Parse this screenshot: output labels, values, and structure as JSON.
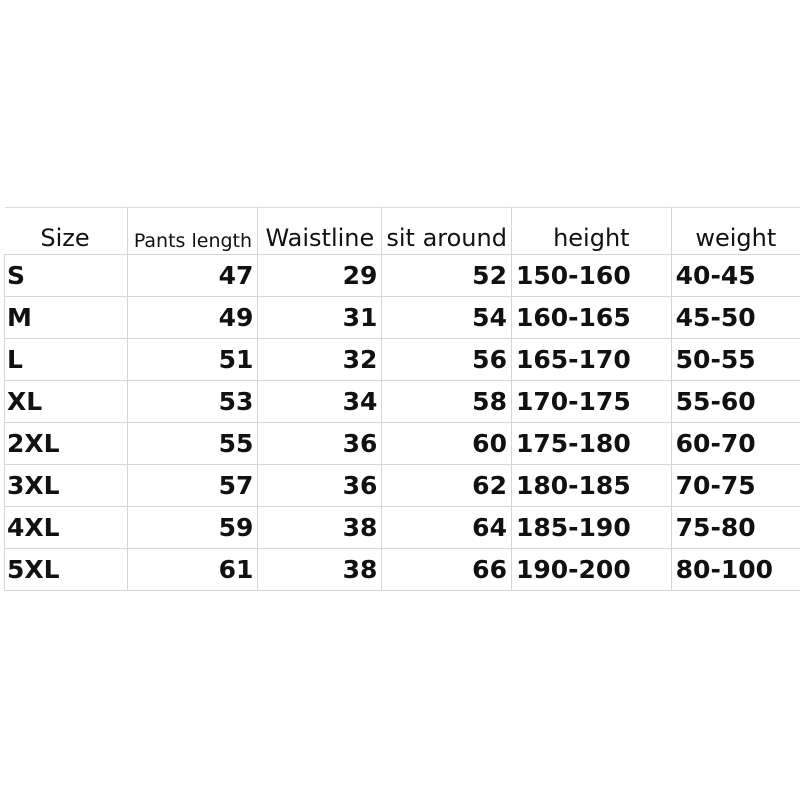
{
  "table": {
    "headers": [
      "Size",
      "Pants length",
      "Waistline",
      "sit around",
      "height",
      "weight"
    ],
    "rows": [
      [
        "S",
        "47",
        "29",
        "52",
        "150-160",
        "40-45"
      ],
      [
        "M",
        "49",
        "31",
        "54",
        "160-165",
        "45-50"
      ],
      [
        "L",
        "51",
        "32",
        "56",
        "165-170",
        "50-55"
      ],
      [
        "XL",
        "53",
        "34",
        "58",
        "170-175",
        "55-60"
      ],
      [
        "2XL",
        "55",
        "36",
        "60",
        "175-180",
        "60-70"
      ],
      [
        "3XL",
        "57",
        "36",
        "62",
        "180-185",
        "70-75"
      ],
      [
        "4XL",
        "59",
        "38",
        "64",
        "185-190",
        "75-80"
      ],
      [
        "5XL",
        "61",
        "38",
        "66",
        "190-200",
        "80-100"
      ]
    ]
  }
}
